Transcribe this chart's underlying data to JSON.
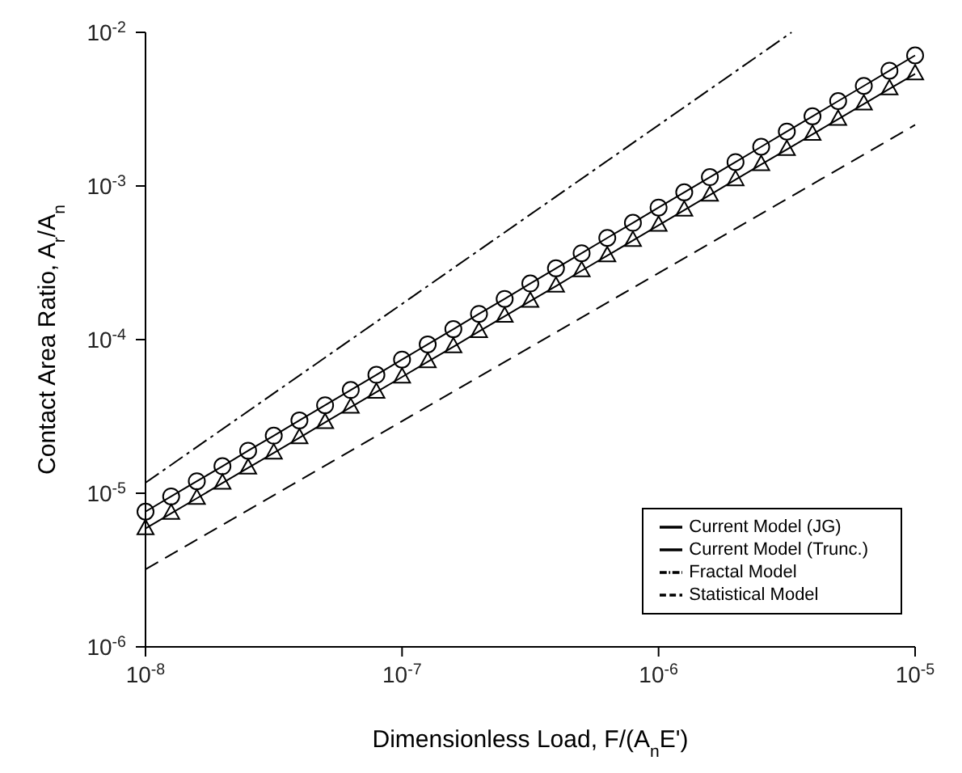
{
  "chart_data": {
    "type": "line",
    "xlabel": "Dimensionless Load, F/(A$_{n}$E')",
    "ylabel": "Contact Area Ratio, A$_{r}$/A$_{n}$",
    "log": "xy",
    "xlim": [
      1e-08,
      1e-05
    ],
    "ylim": [
      1e-06,
      0.01
    ],
    "xticks": [
      {
        "value": 1e-08,
        "label": "10$^{-8}$"
      },
      {
        "value": 1e-07,
        "label": "10$^{-7}$"
      },
      {
        "value": 1e-06,
        "label": "10$^{-6}$"
      },
      {
        "value": 1e-05,
        "label": "10$^{-5}$"
      }
    ],
    "yticks": [
      {
        "value": 1e-06,
        "label": "10$^{-6}$"
      },
      {
        "value": 1e-05,
        "label": "10$^{-5}$"
      },
      {
        "value": 0.0001,
        "label": "10$^{-4}$"
      },
      {
        "value": 0.001,
        "label": "10$^{-3}$"
      },
      {
        "value": 0.01,
        "label": "10$^{-2}$"
      }
    ],
    "x": [
      1e-08,
      1.259e-08,
      1.585e-08,
      1.995e-08,
      2.512e-08,
      3.162e-08,
      3.981e-08,
      5.012e-08,
      6.31e-08,
      7.943e-08,
      1e-07,
      1.259e-07,
      1.585e-07,
      1.995e-07,
      2.512e-07,
      3.162e-07,
      3.981e-07,
      5.012e-07,
      6.31e-07,
      7.943e-07,
      1e-06,
      1.259e-06,
      1.585e-06,
      1.995e-06,
      2.512e-06,
      3.162e-06,
      3.981e-06,
      5.012e-06,
      6.31e-06,
      7.943e-06,
      1e-05
    ],
    "legend": "bottom right",
    "grid": false,
    "series": [
      {
        "name": "Current Model (JG)",
        "color": "#000000",
        "marker": "triangle",
        "line_style": "solid",
        "values": [
          5.89e-06,
          7.4e-06,
          9.27e-06,
          1.164e-05,
          1.462e-05,
          1.83e-05,
          2.3e-05,
          2.89e-05,
          3.63e-05,
          4.55e-05,
          5.71e-05,
          7.18e-05,
          8.99e-05,
          0.000113,
          0.000142,
          0.000178,
          0.000223,
          0.000281,
          0.000352,
          0.000442,
          0.000555,
          0.000697,
          0.000873,
          0.0011,
          0.00138,
          0.00173,
          0.00217,
          0.00272,
          0.00342,
          0.00429,
          0.00537
        ]
      },
      {
        "name": "Current Model (Trunc.)",
        "color": "#000000",
        "marker": "circle",
        "line_style": "solid",
        "values": [
          7.59e-06,
          9.53e-06,
          1.197e-05,
          1.5e-05,
          1.89e-05,
          2.37e-05,
          2.98e-05,
          3.74e-05,
          4.7e-05,
          5.9e-05,
          7.41e-05,
          9.31e-05,
          0.0001169,
          0.000147,
          0.000184,
          0.000232,
          0.000291,
          0.000365,
          0.000459,
          0.000576,
          0.000724,
          0.000909,
          0.001142,
          0.00143,
          0.0018,
          0.00226,
          0.00284,
          0.00357,
          0.00448,
          0.00563,
          0.00708
        ]
      },
      {
        "name": "Fractal Model",
        "color": "#000000",
        "marker": "none",
        "line_style": "dashdot",
        "x": [
          1e-08,
          3.3e-06
        ],
        "values": [
          1.17e-05,
          0.01
        ]
      },
      {
        "name": "Statistical Model",
        "color": "#000000",
        "marker": "none",
        "line_style": "dashed",
        "x": [
          1e-08,
          1e-05
        ],
        "values": [
          3.2e-06,
          0.0025
        ]
      }
    ]
  }
}
